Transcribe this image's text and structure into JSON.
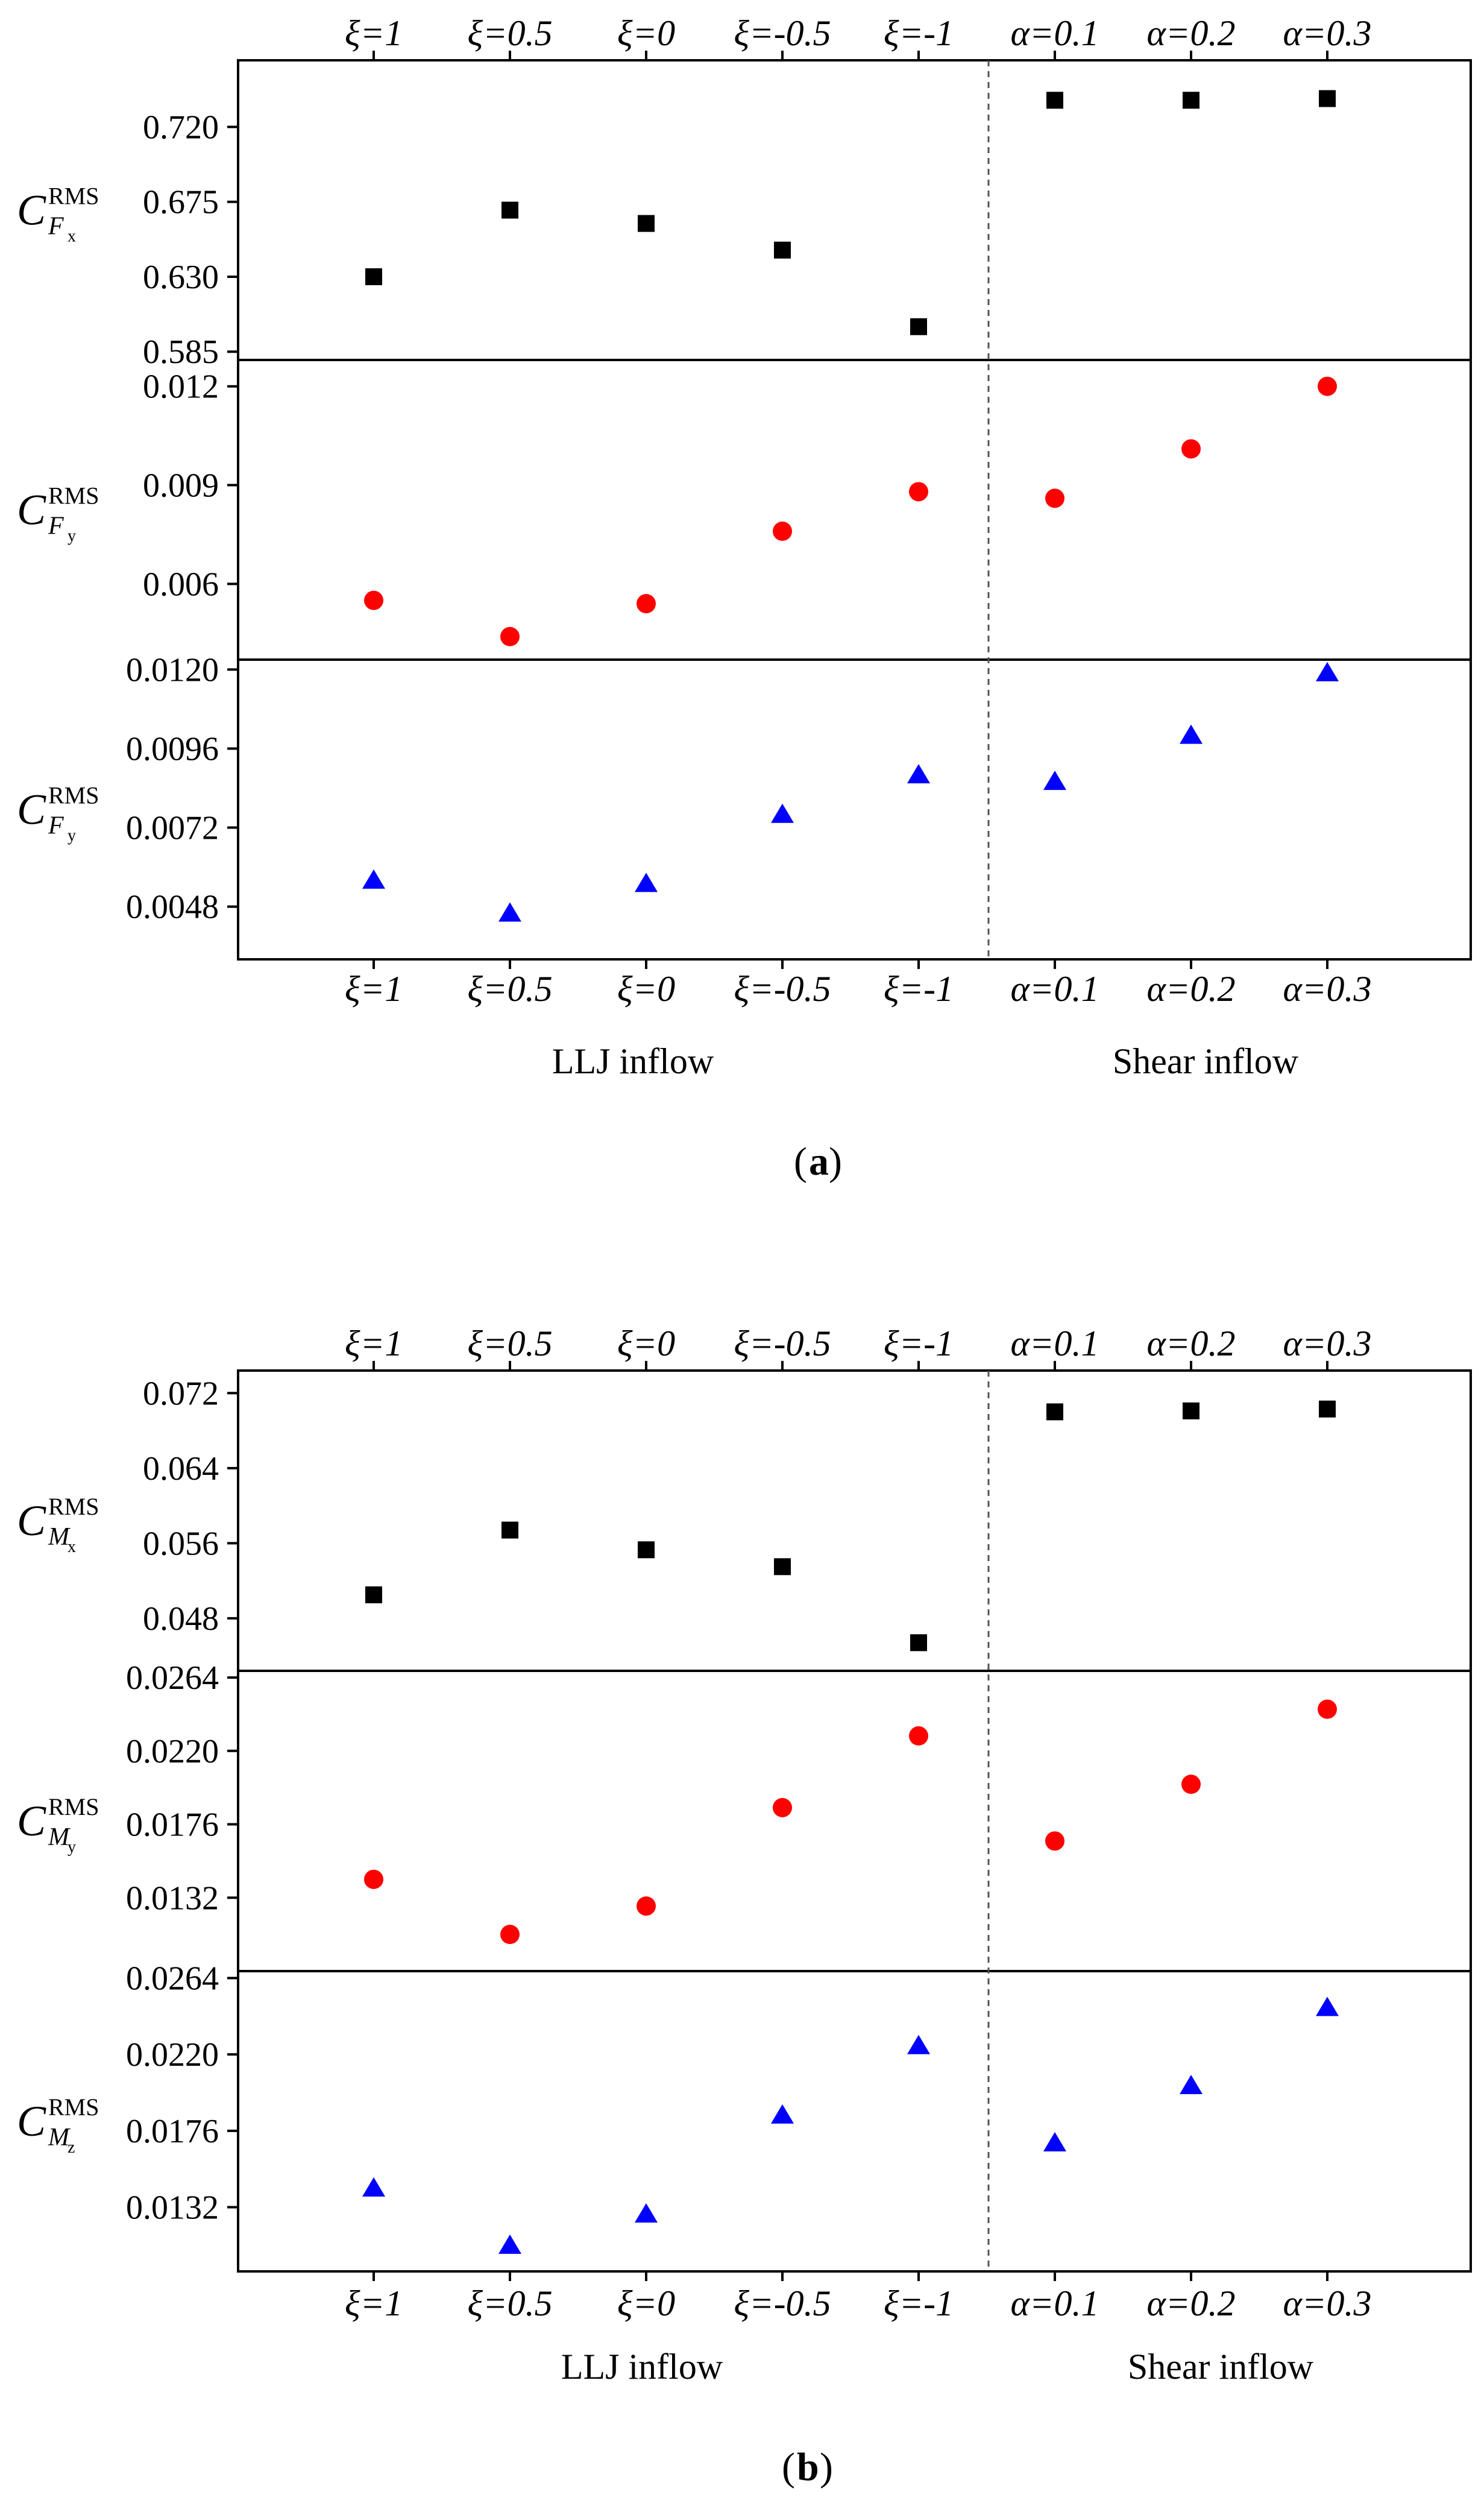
{
  "colors": {
    "black": "#000000",
    "red": "#ff0000",
    "blue": "#0000ff"
  },
  "figures": [
    {
      "caption_letter": "a",
      "group_labels": {
        "left": "LLJ inflow",
        "right": "Shear inflow"
      },
      "categories": [
        "ξ=1",
        "ξ=0.5",
        "ξ=0",
        "ξ=-0.5",
        "ξ=-1",
        "α=0.1",
        "α=0.2",
        "α=0.3"
      ]
    },
    {
      "caption_letter": "b",
      "group_labels": {
        "left": "LLJ inflow",
        "right": "Shear inflow"
      },
      "categories": [
        "ξ=1",
        "ξ=0.5",
        "ξ=0",
        "ξ=-0.5",
        "ξ=-1",
        "α=0.1",
        "α=0.2",
        "α=0.3"
      ]
    }
  ],
  "chart_data": [
    {
      "type": "scatter",
      "figure": "a",
      "ylabel": {
        "main": "C",
        "sup": "RMS",
        "sub": "F",
        "subsub": "x"
      },
      "ylim": [
        0.58,
        0.76
      ],
      "yticks": [
        "0.585",
        "0.630",
        "0.675",
        "0.720"
      ],
      "marker": "square",
      "color": "#000000",
      "values": [
        0.63,
        0.67,
        0.662,
        0.646,
        0.6,
        0.736,
        0.736,
        0.737
      ]
    },
    {
      "type": "scatter",
      "figure": "a",
      "ylabel": {
        "main": "C",
        "sup": "RMS",
        "sub": "F",
        "subsub": "y"
      },
      "ylim": [
        0.0037,
        0.0128
      ],
      "yticks": [
        "0.006",
        "0.009",
        "0.012"
      ],
      "marker": "circle",
      "color": "#ff0000",
      "values": [
        0.0055,
        0.0044,
        0.0054,
        0.0076,
        0.0088,
        0.0086,
        0.0101,
        0.012
      ]
    },
    {
      "type": "scatter",
      "figure": "a",
      "ylabel": {
        "main": "C",
        "sup": "RMS",
        "sub": "F",
        "subsub": "y"
      },
      "ylim": [
        0.0032,
        0.0123
      ],
      "yticks": [
        "0.0048",
        "0.0072",
        "0.0096",
        "0.0120"
      ],
      "marker": "triangle",
      "color": "#0000ff",
      "values": [
        0.0056,
        0.0046,
        0.0055,
        0.0076,
        0.0088,
        0.0086,
        0.01,
        0.0119
      ]
    },
    {
      "type": "scatter",
      "figure": "b",
      "ylabel": {
        "main": "C",
        "sup": "RMS",
        "sub": "M",
        "subsub": "x"
      },
      "ylim": [
        0.0424,
        0.0744
      ],
      "yticks": [
        "0.048",
        "0.056",
        "0.064",
        "0.072"
      ],
      "marker": "square",
      "color": "#000000",
      "values": [
        0.0505,
        0.0574,
        0.0553,
        0.0535,
        0.0454,
        0.07,
        0.0701,
        0.0703
      ]
    },
    {
      "type": "scatter",
      "figure": "b",
      "ylabel": {
        "main": "C",
        "sup": "RMS",
        "sub": "M",
        "subsub": "y"
      },
      "ylim": [
        0.0088,
        0.0268
      ],
      "yticks": [
        "0.0132",
        "0.0176",
        "0.0220",
        "0.0264"
      ],
      "marker": "circle",
      "color": "#ff0000",
      "values": [
        0.0143,
        0.011,
        0.0127,
        0.0186,
        0.0229,
        0.0166,
        0.02,
        0.0245
      ]
    },
    {
      "type": "scatter",
      "figure": "b",
      "ylabel": {
        "main": "C",
        "sup": "RMS",
        "sub": "M",
        "subsub": "z"
      },
      "ylim": [
        0.0095,
        0.0268
      ],
      "yticks": [
        "0.0132",
        "0.0176",
        "0.0220",
        "0.0264"
      ],
      "marker": "triangle",
      "color": "#0000ff",
      "values": [
        0.0143,
        0.011,
        0.0128,
        0.0185,
        0.0225,
        0.0169,
        0.0202,
        0.0247
      ]
    }
  ]
}
